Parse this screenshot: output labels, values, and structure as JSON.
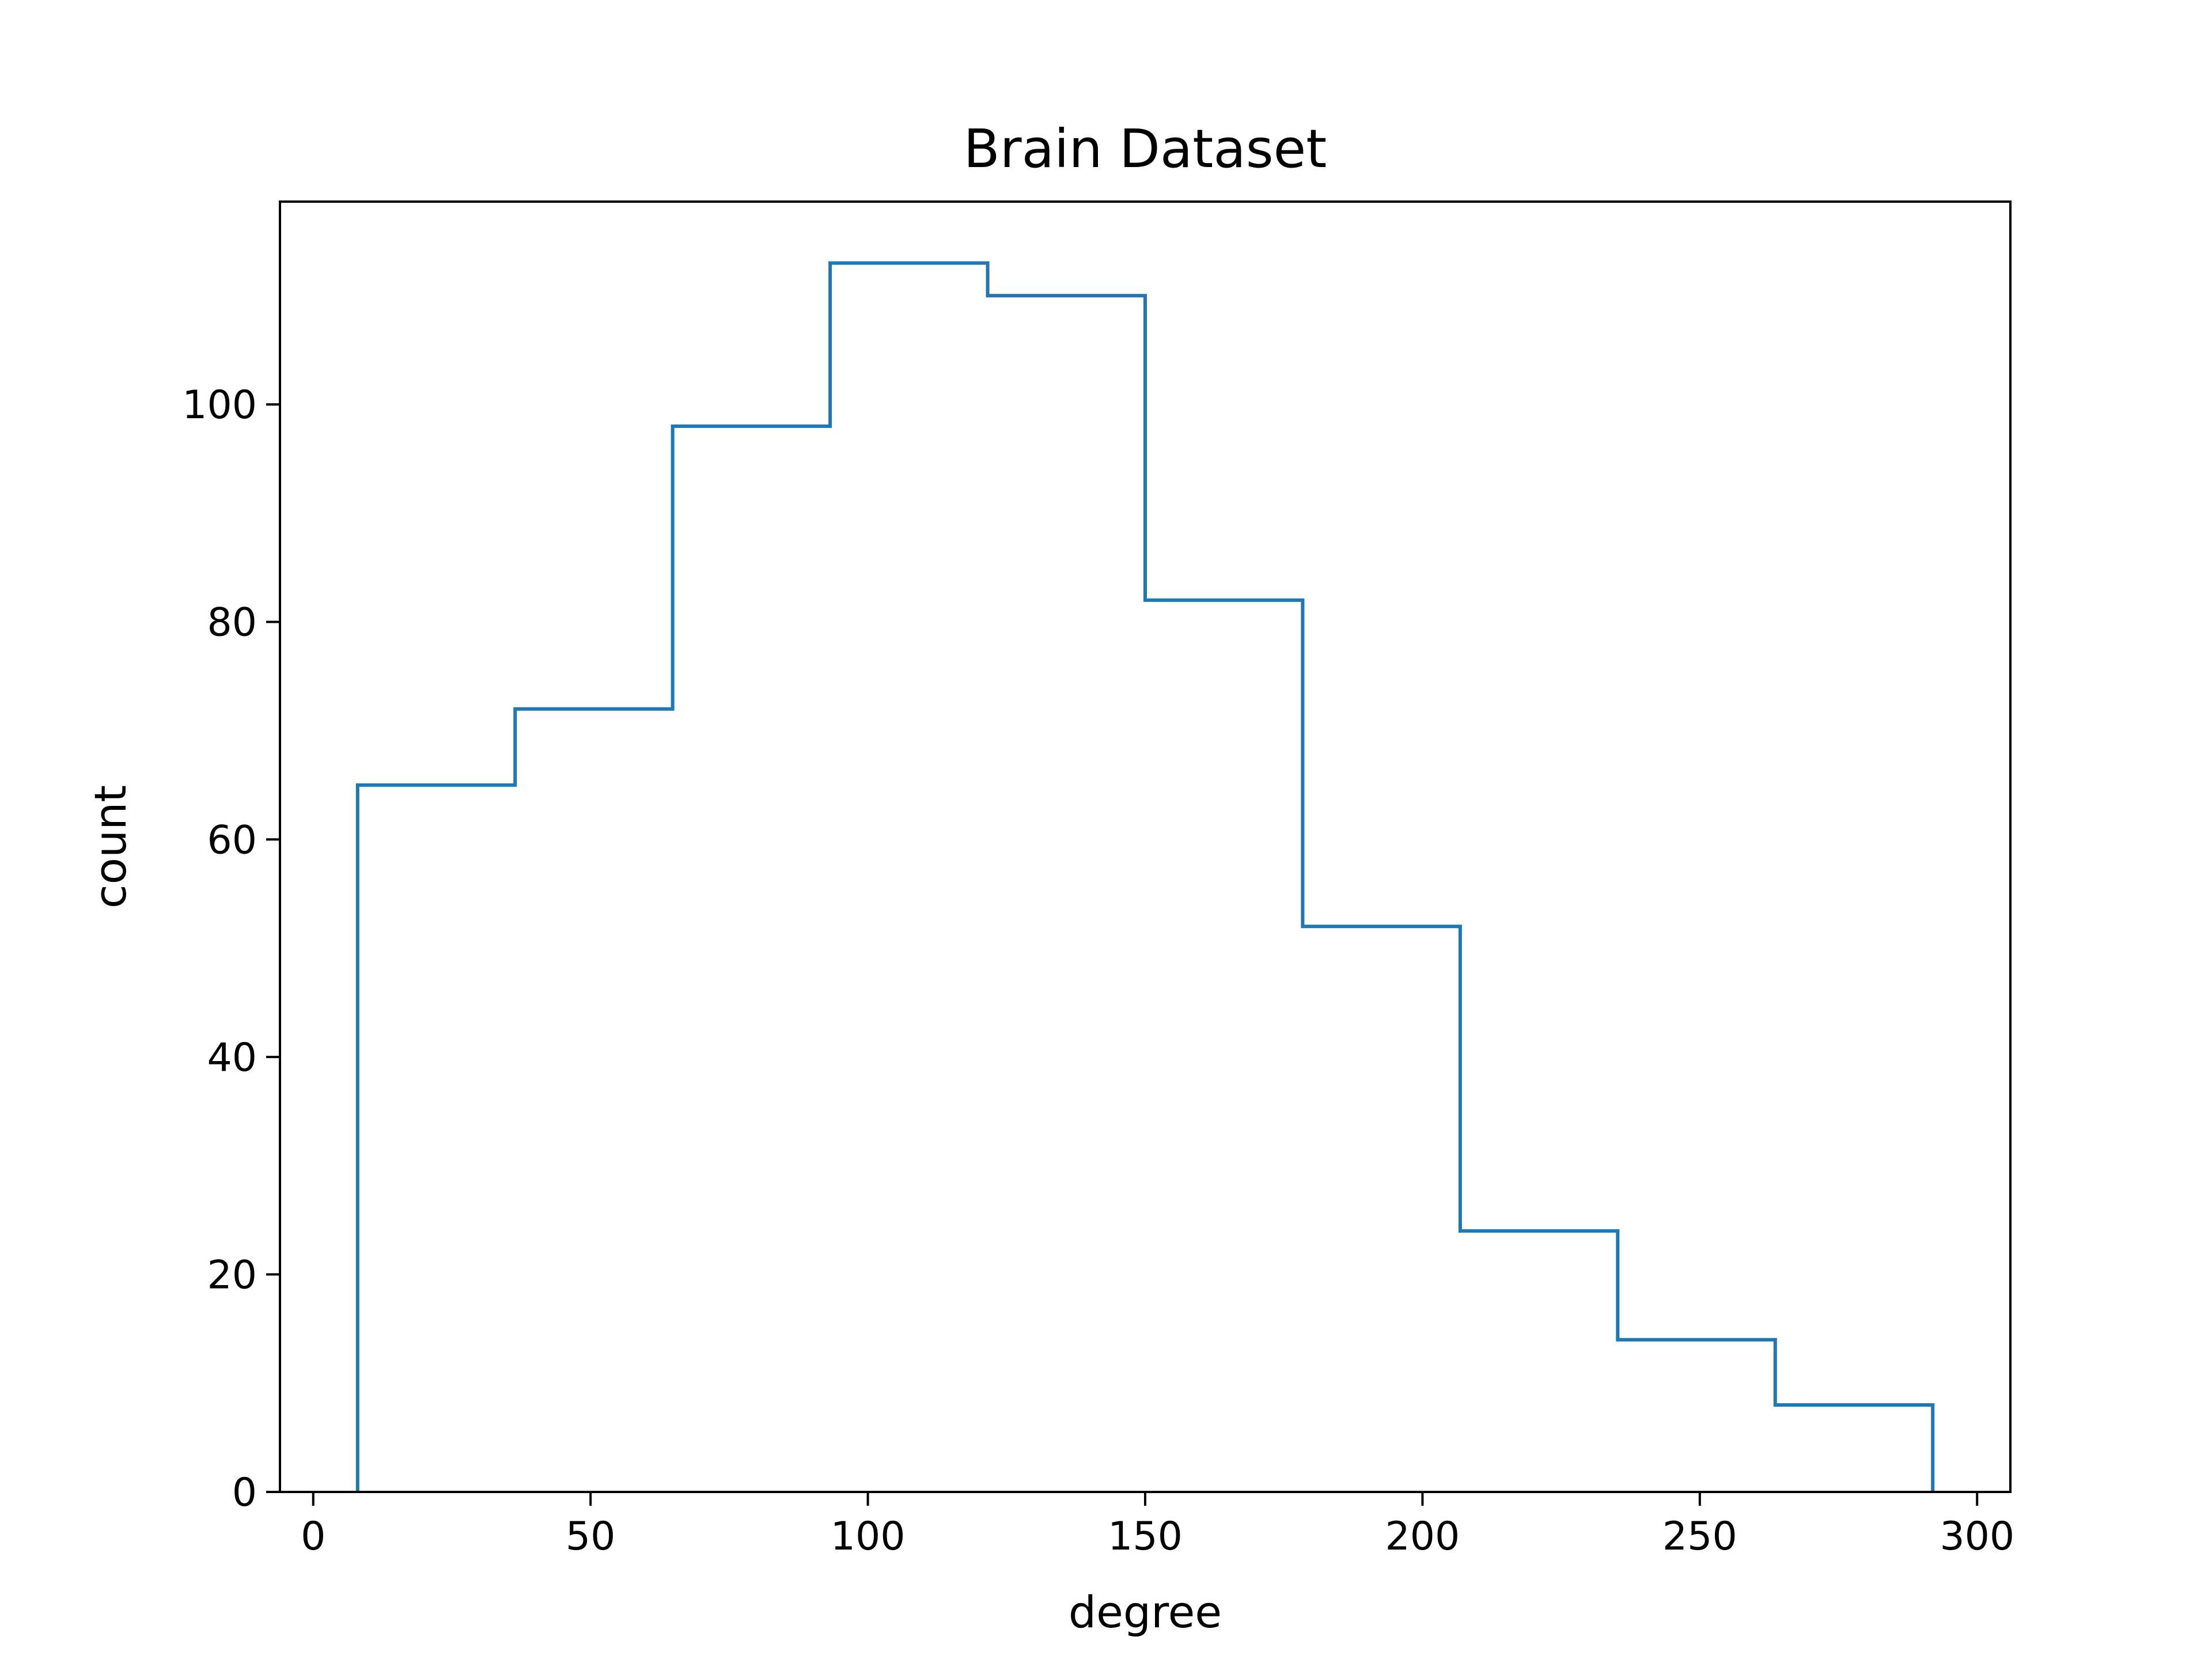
{
  "chart_data": {
    "type": "histogram",
    "title": "Brain Dataset",
    "xlabel": "degree",
    "ylabel": "count",
    "xlim": [
      -6,
      306
    ],
    "ylim": [
      0,
      118.65
    ],
    "xticks": [
      0,
      50,
      100,
      150,
      200,
      250,
      300
    ],
    "yticks": [
      0,
      20,
      40,
      60,
      80,
      100
    ],
    "grid": false,
    "legend": "none",
    "histtype": "step",
    "color": "#1f77b4",
    "bin_edges": [
      8,
      36.4,
      64.8,
      93.2,
      121.6,
      150,
      178.4,
      206.8,
      235.2,
      263.6,
      292
    ],
    "counts": [
      65,
      72,
      98,
      113,
      110,
      82,
      52,
      24,
      14,
      8
    ]
  }
}
